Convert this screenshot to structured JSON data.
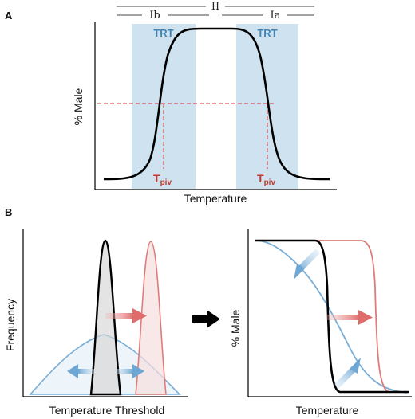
{
  "panel_a": {
    "letter": "A",
    "bracket_top": "II",
    "bracket_left": "Ib",
    "bracket_right": "Ia",
    "trt_left": "TRT",
    "trt_right": "TRT",
    "y_axis": "% Male",
    "x_axis": "Temperature",
    "tpiv_left_main": "T",
    "tpiv_left_sub": "piv",
    "tpiv_right_main": "T",
    "tpiv_right_sub": "piv"
  },
  "panel_b": {
    "letter": "B",
    "left_y_axis": "Frequency",
    "left_x_axis": "Temperature Threshold",
    "right_y_axis": "% Male",
    "right_x_axis": "Temperature"
  },
  "colors": {
    "trt_band": "#cfe2f0",
    "pivot_red": "#d95a5a",
    "blue_curve": "#7aaed6",
    "red_curve": "#e07b7b",
    "black_curve": "#000000"
  }
}
